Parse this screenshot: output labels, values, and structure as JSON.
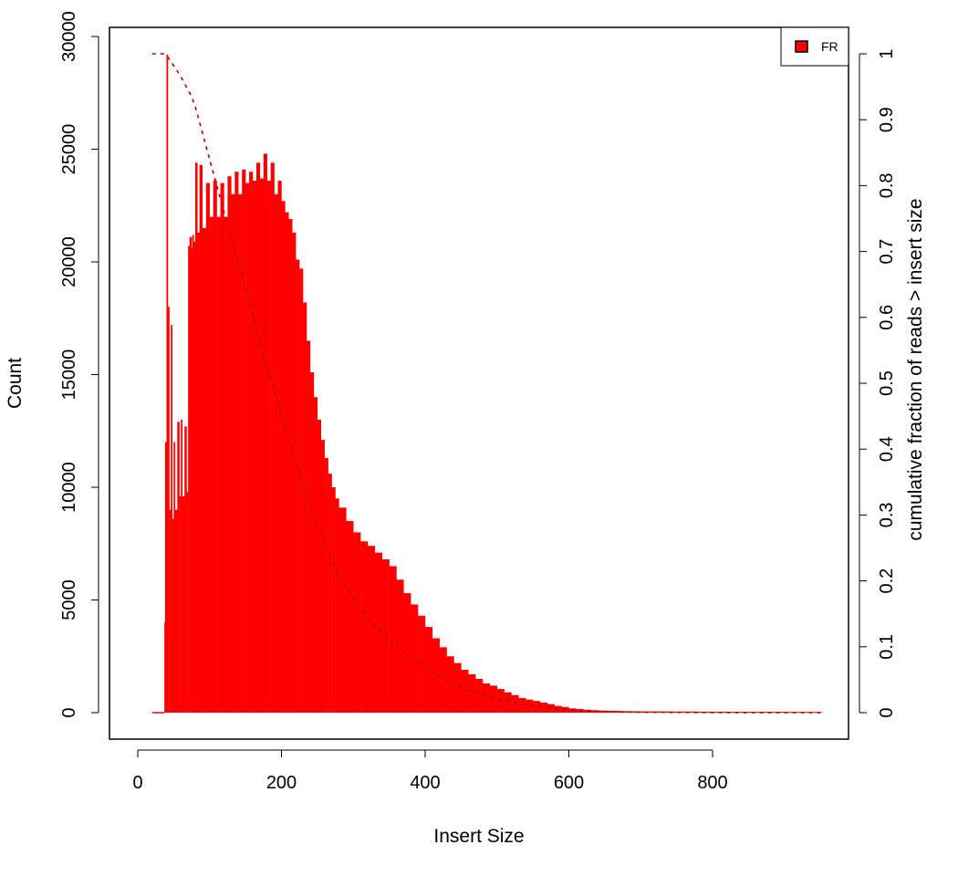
{
  "chart_data": {
    "type": "bar",
    "title": "",
    "xlabel": "Insert Size",
    "ylabel": "Count",
    "y2label": "cumulative fraction of reads > insert size",
    "xlim": [
      0,
      950
    ],
    "ylim": [
      0,
      30000
    ],
    "y2lim": [
      0,
      1
    ],
    "grid": false,
    "legend_position": "top-right",
    "x_ticks": [
      0,
      200,
      400,
      600,
      800
    ],
    "y_ticks": [
      0,
      5000,
      10000,
      15000,
      20000,
      25000,
      30000
    ],
    "y2_ticks": [
      0,
      0.1,
      0.2,
      0.3,
      0.4,
      0.5,
      0.6,
      0.7,
      0.8,
      0.9,
      1
    ],
    "series": [
      {
        "name": "FR",
        "kind": "histogram",
        "color": "#ff0000",
        "x": [
          37,
          38,
          40,
          42,
          44,
          46,
          48,
          50,
          52,
          55,
          58,
          60,
          62,
          65,
          68,
          70,
          72,
          75,
          76,
          78,
          80,
          83,
          86,
          90,
          95,
          100,
          105,
          110,
          115,
          120,
          125,
          130,
          135,
          140,
          145,
          150,
          155,
          160,
          165,
          170,
          175,
          180,
          185,
          190,
          195,
          200,
          205,
          210,
          215,
          220,
          225,
          230,
          235,
          240,
          245,
          250,
          255,
          260,
          265,
          270,
          275,
          280,
          290,
          300,
          310,
          320,
          330,
          340,
          350,
          360,
          370,
          380,
          390,
          400,
          410,
          420,
          430,
          440,
          450,
          460,
          470,
          480,
          490,
          500,
          510,
          520,
          530,
          540,
          550,
          560,
          570,
          580,
          590,
          600,
          610,
          620,
          630,
          640,
          650,
          660,
          670,
          680,
          690,
          700,
          720,
          740,
          760,
          780,
          800,
          820,
          840,
          860,
          880,
          900,
          920,
          950
        ],
        "values": [
          4000,
          12000,
          29200,
          18000,
          9000,
          17200,
          8600,
          12000,
          9000,
          12900,
          9600,
          13000,
          9600,
          12700,
          9800,
          20700,
          21100,
          20600,
          21200,
          20900,
          24400,
          21300,
          24300,
          21500,
          23500,
          22000,
          23600,
          22000,
          23500,
          22000,
          23800,
          23000,
          24000,
          23000,
          24100,
          23500,
          24000,
          23600,
          24400,
          23700,
          24800,
          23600,
          24400,
          23000,
          23600,
          22700,
          22200,
          21900,
          21300,
          20100,
          19700,
          18200,
          16500,
          15100,
          14000,
          13000,
          12100,
          11300,
          10600,
          10000,
          9500,
          9100,
          8500,
          8000,
          7600,
          7400,
          7100,
          6800,
          6500,
          5900,
          5300,
          4800,
          4300,
          3800,
          3300,
          2900,
          2500,
          2200,
          1900,
          1700,
          1500,
          1300,
          1200,
          1050,
          900,
          780,
          650,
          580,
          520,
          450,
          380,
          300,
          250,
          190,
          160,
          130,
          110,
          95,
          85,
          80,
          70,
          65,
          60,
          55,
          55,
          50,
          50,
          45,
          45,
          42,
          40,
          40,
          38,
          35,
          35,
          30
        ]
      },
      {
        "name": "",
        "kind": "cumulative",
        "axis": "right",
        "style": "dashed",
        "color": "#b00000",
        "x": [
          20,
          30,
          35,
          40,
          45,
          50,
          55,
          60,
          65,
          70,
          75,
          80,
          85,
          90,
          95,
          100,
          110,
          120,
          130,
          140,
          150,
          160,
          170,
          180,
          190,
          200,
          210,
          220,
          230,
          240,
          250,
          260,
          270,
          280,
          290,
          300,
          320,
          340,
          360,
          380,
          400,
          420,
          440,
          460,
          480,
          500,
          520,
          540,
          560,
          580,
          600,
          620,
          640,
          660,
          680,
          700,
          750,
          800,
          850,
          900,
          950
        ],
        "values": [
          1,
          1,
          1,
          0.998,
          0.99,
          0.982,
          0.974,
          0.965,
          0.955,
          0.945,
          0.935,
          0.92,
          0.9,
          0.88,
          0.86,
          0.84,
          0.8,
          0.76,
          0.72,
          0.685,
          0.645,
          0.605,
          0.565,
          0.525,
          0.49,
          0.455,
          0.415,
          0.38,
          0.345,
          0.31,
          0.28,
          0.255,
          0.23,
          0.21,
          0.19,
          0.175,
          0.145,
          0.12,
          0.1,
          0.083,
          0.069,
          0.055,
          0.043,
          0.034,
          0.027,
          0.021,
          0.016,
          0.012,
          0.009,
          0.006,
          0.004,
          0.003,
          0.002,
          0.0015,
          0.001,
          0.0007,
          0.0004,
          0.0002,
          0.0001,
          0,
          0
        ]
      }
    ]
  }
}
